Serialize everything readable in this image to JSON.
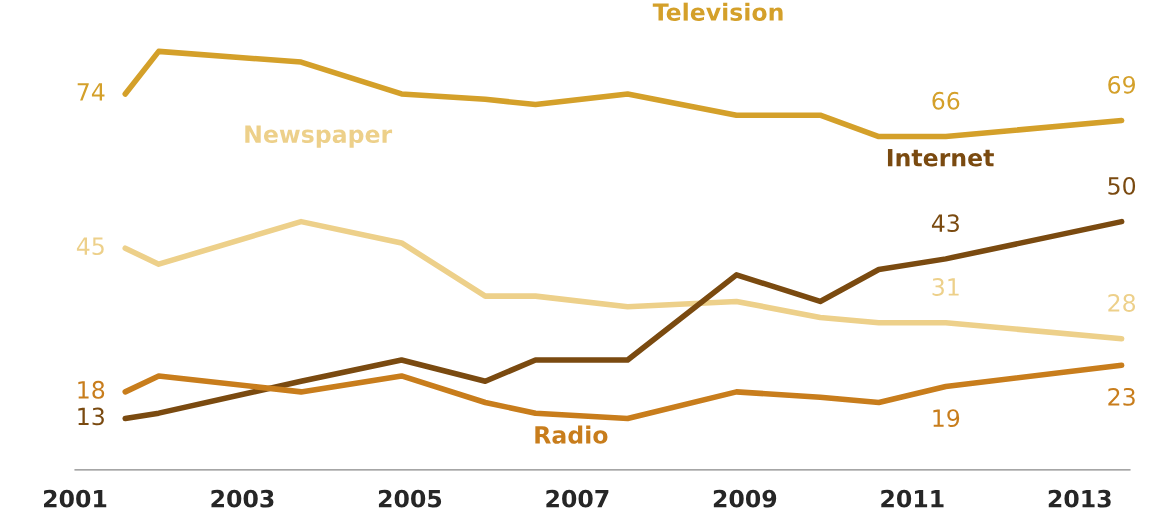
{
  "chart_data": {
    "type": "line",
    "x": [
      2001.6,
      2002.0,
      2003.7,
      2004.9,
      2005.9,
      2006.5,
      2007.6,
      2008.9,
      2009.9,
      2010.6,
      2011.4,
      2013.5
    ],
    "series": [
      {
        "name": "Television",
        "color": "#d4a02a",
        "values": [
          74,
          82,
          80,
          74,
          73,
          72,
          74,
          70,
          70,
          66,
          66,
          69
        ],
        "value_labels": [
          "74",
          null,
          null,
          null,
          null,
          null,
          null,
          null,
          null,
          null,
          "66",
          "69"
        ]
      },
      {
        "name": "Newspaper",
        "color": "#edd08a",
        "values": [
          45,
          42,
          50,
          46,
          36,
          36,
          34,
          35,
          32,
          31,
          31,
          28
        ],
        "value_labels": [
          "45",
          null,
          null,
          null,
          null,
          null,
          null,
          null,
          null,
          null,
          "31",
          "28"
        ]
      },
      {
        "name": "Internet",
        "color": "#7a4a10",
        "values": [
          13,
          14,
          20,
          24,
          20,
          24,
          24,
          40,
          35,
          41,
          43,
          50
        ],
        "value_labels": [
          "13",
          null,
          null,
          null,
          null,
          null,
          null,
          null,
          null,
          null,
          "43",
          "50"
        ]
      },
      {
        "name": "Radio",
        "color": "#c87d1c",
        "values": [
          18,
          21,
          18,
          21,
          16,
          14,
          13,
          18,
          17,
          16,
          19,
          23
        ],
        "value_labels": [
          "18",
          null,
          null,
          null,
          null,
          null,
          null,
          null,
          null,
          null,
          "19",
          "23"
        ]
      }
    ],
    "xlim": [
      2001,
      2013.6
    ],
    "xticks": [
      2001,
      2003,
      2005,
      2007,
      2009,
      2011,
      2013
    ],
    "tick_labels": "x",
    "grid": false,
    "legend": false,
    "marker": "none",
    "line_style": "solid"
  }
}
